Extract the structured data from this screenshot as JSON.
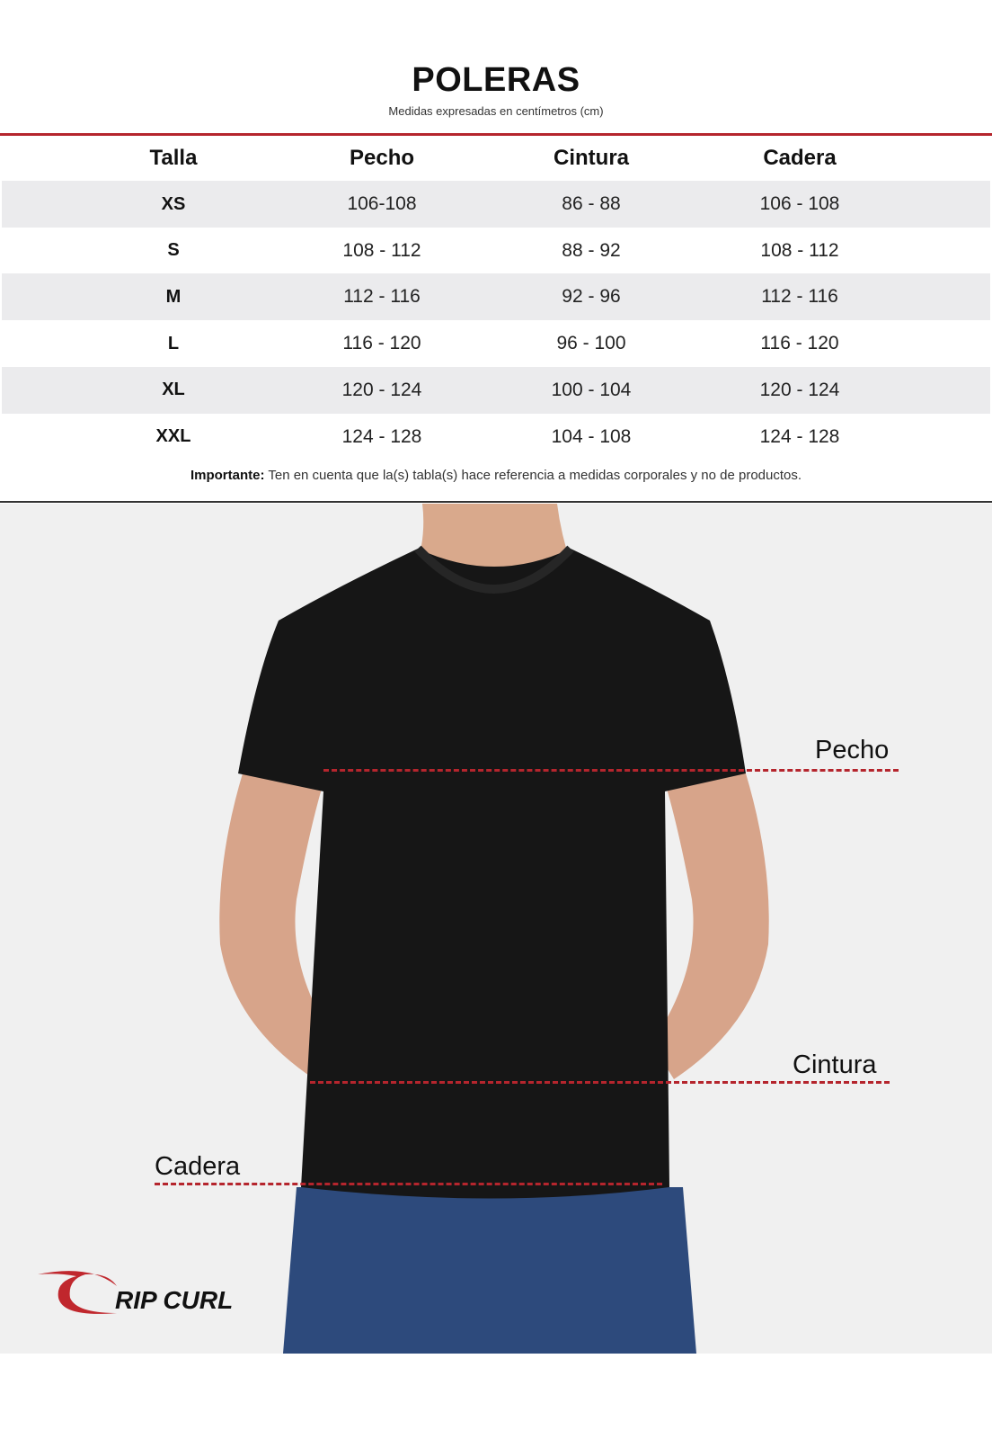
{
  "title": "POLERAS",
  "subtitle": "Medidas expresadas en centímetros (cm)",
  "table": {
    "headers": [
      "Talla",
      "Pecho",
      "Cintura",
      "Cadera"
    ],
    "rows": [
      [
        "XS",
        "106-108",
        "86 - 88",
        "106 - 108"
      ],
      [
        "S",
        "108 - 112",
        "88 - 92",
        "108 - 112"
      ],
      [
        "M",
        "112 - 116",
        "92 - 96",
        "112 - 116"
      ],
      [
        "L",
        "116 - 120",
        "96 - 100",
        "116 - 120"
      ],
      [
        "XL",
        "120 - 124",
        "100 - 104",
        "120 - 124"
      ],
      [
        "XXL",
        "124 - 128",
        "104 - 108",
        "124 - 128"
      ]
    ]
  },
  "note": {
    "label": "Importante:",
    "text": " Ten en cuenta que la(s) tabla(s) hace referencia a medidas corporales y no de productos."
  },
  "figure": {
    "pecho": "Pecho",
    "cintura": "Cintura",
    "cadera": "Cadera"
  },
  "logo": {
    "text": "RIP CURL"
  },
  "colors": {
    "accent": "#b5252d",
    "shaded_row": "#ebebed",
    "photo_bg": "#f0f0f0"
  }
}
